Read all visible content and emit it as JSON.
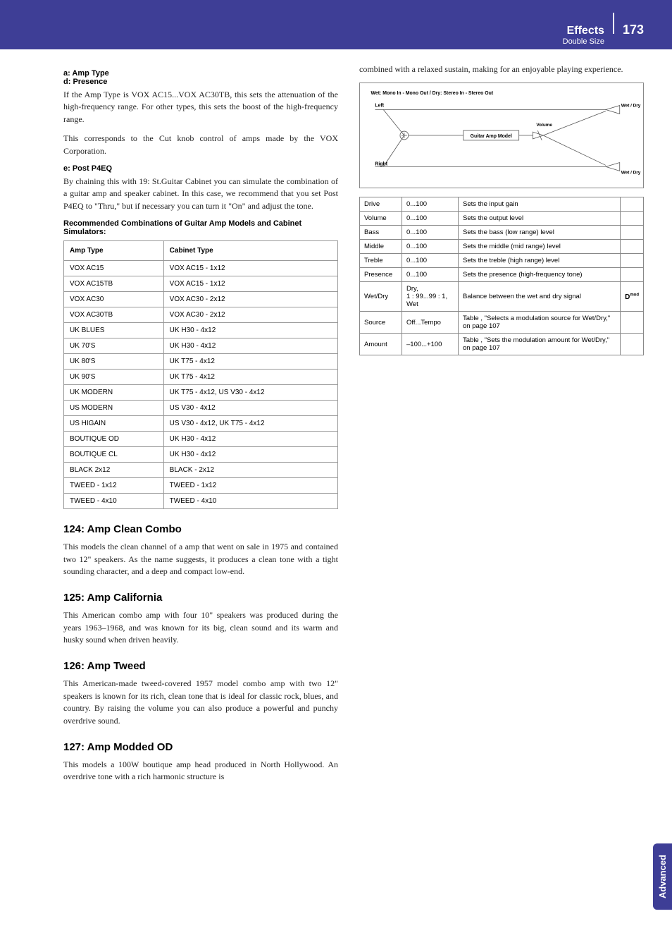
{
  "header": {
    "effects": "Effects",
    "sub": "Double Size",
    "page": "173"
  },
  "side_tab": "Advanced",
  "left": {
    "a_d_head": "a: Amp Type\nd: Presence",
    "a_d_body1": "If the Amp Type is VOX AC15...VOX AC30TB, this sets the attenuation of the high-frequency range. For other types, this sets the boost of the high-frequency range.",
    "a_d_body2": "This corresponds to the Cut knob control of amps made by the VOX Corporation.",
    "e_head": "e: Post P4EQ",
    "e_body": "By chaining this with 19: St.Guitar Cabinet you can simulate the combination of a guitar amp and speaker cabinet. In this case, we recommend that you set Post P4EQ to \"Thru,\" but if necessary you can turn it \"On\" and adjust the tone.",
    "combo_head": "Recommended Combinations of Guitar Amp Models and Cabinet Simulators:",
    "combo_table": {
      "columns": [
        "Amp Type",
        "Cabinet Type"
      ],
      "rows": [
        [
          "VOX AC15",
          "VOX AC15 - 1x12"
        ],
        [
          "VOX AC15TB",
          "VOX AC15 - 1x12"
        ],
        [
          "VOX AC30",
          "VOX AC30 - 2x12"
        ],
        [
          "VOX AC30TB",
          "VOX AC30 - 2x12"
        ],
        [
          "UK BLUES",
          "UK H30 - 4x12"
        ],
        [
          "UK 70'S",
          "UK H30 - 4x12"
        ],
        [
          "UK 80'S",
          "UK T75 - 4x12"
        ],
        [
          "UK 90'S",
          "UK T75 - 4x12"
        ],
        [
          "UK MODERN",
          "UK T75 - 4x12, US V30 - 4x12"
        ],
        [
          "US MODERN",
          "US V30 - 4x12"
        ],
        [
          "US HIGAIN",
          "US V30 - 4x12, UK T75 - 4x12"
        ],
        [
          "BOUTIQUE OD",
          "UK H30 - 4x12"
        ],
        [
          "BOUTIQUE CL",
          "UK H30 - 4x12"
        ],
        [
          "BLACK 2x12",
          "BLACK - 2x12"
        ],
        [
          "TWEED - 1x12",
          "TWEED - 1x12"
        ],
        [
          "TWEED - 4x10",
          "TWEED - 4x10"
        ]
      ]
    },
    "s124_title": "124:  Amp Clean Combo",
    "s124_body": "This models the clean channel of a amp that went on sale in 1975 and contained two 12\" speakers. As the name suggests, it produces a clean tone with a tight sounding character, and a deep and compact low-end.",
    "s125_title": "125:  Amp California",
    "s125_body": "This American combo amp with four 10\" speakers was produced during the years 1963–1968, and was known for its big, clean sound and its warm and husky sound when driven heavily.",
    "s126_title": "126:  Amp Tweed",
    "s126_body": "This American-made tweed-covered 1957 model combo amp with two 12\" speakers is known for its rich, clean tone that is ideal for classic rock, blues, and country. By raising the volume you can also produce a powerful and punchy overdrive sound.",
    "s127_title": "127:  Amp Modded OD",
    "s127_body": "This models a 100W boutique amp head produced in North Hollywood. An overdrive tone with a rich harmonic structure is"
  },
  "right": {
    "intro": "combined with a relaxed sustain, making for an enjoyable playing experience.",
    "diagram": {
      "title": "Wet: Mono In - Mono Out  /  Dry: Stereo In - Stereo Out",
      "left": "Left",
      "right": "Right",
      "volume": "Volume",
      "block": "Guitar Amp Model",
      "wetdry": "Wet / Dry"
    },
    "param_table": {
      "rows": [
        [
          "Drive",
          "0...100",
          "Sets the input gain",
          ""
        ],
        [
          "Volume",
          "0...100",
          "Sets the output level",
          ""
        ],
        [
          "Bass",
          "0...100",
          "Sets the bass (low range) level",
          ""
        ],
        [
          "Middle",
          "0...100",
          "Sets the middle (mid range) level",
          ""
        ],
        [
          "Treble",
          "0...100",
          "Sets the treble (high range) level",
          ""
        ],
        [
          "Presence",
          "0...100",
          "Sets the presence (high-frequency tone)",
          ""
        ],
        [
          "Wet/Dry",
          "Dry,\n1 : 99...99 : 1,\nWet",
          "Balance between the wet and dry signal",
          "dmod"
        ],
        [
          "Source",
          "Off...Tempo",
          "Table , \"Selects a modulation source for Wet/Dry,\" on page 107",
          ""
        ],
        [
          "Amount",
          "–100...+100",
          "Table , \"Sets the modulation amount for Wet/Dry,\" on page 107",
          ""
        ]
      ]
    }
  },
  "colors": {
    "brand": "#3e3e96",
    "border": "#888888",
    "text": "#222222"
  }
}
